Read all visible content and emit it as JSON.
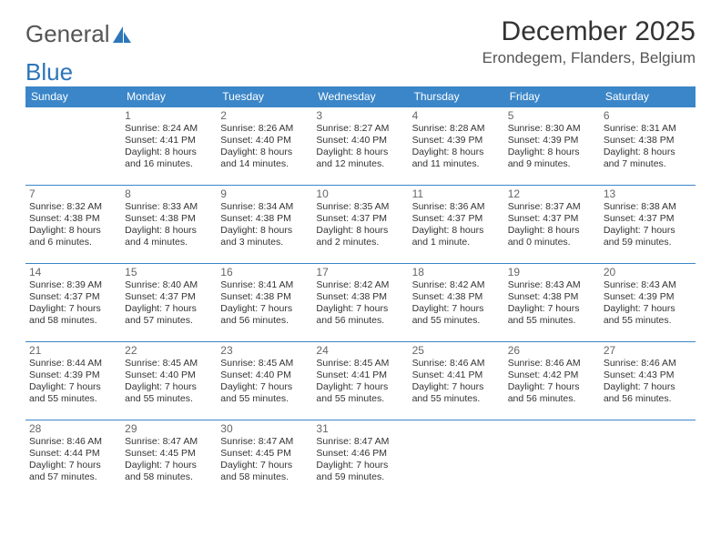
{
  "logo": {
    "part1": "General",
    "part2": "Blue"
  },
  "title": "December 2025",
  "location": "Erondegem, Flanders, Belgium",
  "colors": {
    "header_bg": "#3b86c8",
    "header_text": "#ffffff",
    "cell_border": "#3b86c8",
    "text": "#333333",
    "logo_gray": "#555555",
    "logo_blue": "#2d76ba",
    "background": "#ffffff"
  },
  "day_names": [
    "Sunday",
    "Monday",
    "Tuesday",
    "Wednesday",
    "Thursday",
    "Friday",
    "Saturday"
  ],
  "weeks": [
    [
      null,
      {
        "n": "1",
        "sr": "Sunrise: 8:24 AM",
        "ss": "Sunset: 4:41 PM",
        "dl": "Daylight: 8 hours and 16 minutes."
      },
      {
        "n": "2",
        "sr": "Sunrise: 8:26 AM",
        "ss": "Sunset: 4:40 PM",
        "dl": "Daylight: 8 hours and 14 minutes."
      },
      {
        "n": "3",
        "sr": "Sunrise: 8:27 AM",
        "ss": "Sunset: 4:40 PM",
        "dl": "Daylight: 8 hours and 12 minutes."
      },
      {
        "n": "4",
        "sr": "Sunrise: 8:28 AM",
        "ss": "Sunset: 4:39 PM",
        "dl": "Daylight: 8 hours and 11 minutes."
      },
      {
        "n": "5",
        "sr": "Sunrise: 8:30 AM",
        "ss": "Sunset: 4:39 PM",
        "dl": "Daylight: 8 hours and 9 minutes."
      },
      {
        "n": "6",
        "sr": "Sunrise: 8:31 AM",
        "ss": "Sunset: 4:38 PM",
        "dl": "Daylight: 8 hours and 7 minutes."
      }
    ],
    [
      {
        "n": "7",
        "sr": "Sunrise: 8:32 AM",
        "ss": "Sunset: 4:38 PM",
        "dl": "Daylight: 8 hours and 6 minutes."
      },
      {
        "n": "8",
        "sr": "Sunrise: 8:33 AM",
        "ss": "Sunset: 4:38 PM",
        "dl": "Daylight: 8 hours and 4 minutes."
      },
      {
        "n": "9",
        "sr": "Sunrise: 8:34 AM",
        "ss": "Sunset: 4:38 PM",
        "dl": "Daylight: 8 hours and 3 minutes."
      },
      {
        "n": "10",
        "sr": "Sunrise: 8:35 AM",
        "ss": "Sunset: 4:37 PM",
        "dl": "Daylight: 8 hours and 2 minutes."
      },
      {
        "n": "11",
        "sr": "Sunrise: 8:36 AM",
        "ss": "Sunset: 4:37 PM",
        "dl": "Daylight: 8 hours and 1 minute."
      },
      {
        "n": "12",
        "sr": "Sunrise: 8:37 AM",
        "ss": "Sunset: 4:37 PM",
        "dl": "Daylight: 8 hours and 0 minutes."
      },
      {
        "n": "13",
        "sr": "Sunrise: 8:38 AM",
        "ss": "Sunset: 4:37 PM",
        "dl": "Daylight: 7 hours and 59 minutes."
      }
    ],
    [
      {
        "n": "14",
        "sr": "Sunrise: 8:39 AM",
        "ss": "Sunset: 4:37 PM",
        "dl": "Daylight: 7 hours and 58 minutes."
      },
      {
        "n": "15",
        "sr": "Sunrise: 8:40 AM",
        "ss": "Sunset: 4:37 PM",
        "dl": "Daylight: 7 hours and 57 minutes."
      },
      {
        "n": "16",
        "sr": "Sunrise: 8:41 AM",
        "ss": "Sunset: 4:38 PM",
        "dl": "Daylight: 7 hours and 56 minutes."
      },
      {
        "n": "17",
        "sr": "Sunrise: 8:42 AM",
        "ss": "Sunset: 4:38 PM",
        "dl": "Daylight: 7 hours and 56 minutes."
      },
      {
        "n": "18",
        "sr": "Sunrise: 8:42 AM",
        "ss": "Sunset: 4:38 PM",
        "dl": "Daylight: 7 hours and 55 minutes."
      },
      {
        "n": "19",
        "sr": "Sunrise: 8:43 AM",
        "ss": "Sunset: 4:38 PM",
        "dl": "Daylight: 7 hours and 55 minutes."
      },
      {
        "n": "20",
        "sr": "Sunrise: 8:43 AM",
        "ss": "Sunset: 4:39 PM",
        "dl": "Daylight: 7 hours and 55 minutes."
      }
    ],
    [
      {
        "n": "21",
        "sr": "Sunrise: 8:44 AM",
        "ss": "Sunset: 4:39 PM",
        "dl": "Daylight: 7 hours and 55 minutes."
      },
      {
        "n": "22",
        "sr": "Sunrise: 8:45 AM",
        "ss": "Sunset: 4:40 PM",
        "dl": "Daylight: 7 hours and 55 minutes."
      },
      {
        "n": "23",
        "sr": "Sunrise: 8:45 AM",
        "ss": "Sunset: 4:40 PM",
        "dl": "Daylight: 7 hours and 55 minutes."
      },
      {
        "n": "24",
        "sr": "Sunrise: 8:45 AM",
        "ss": "Sunset: 4:41 PM",
        "dl": "Daylight: 7 hours and 55 minutes."
      },
      {
        "n": "25",
        "sr": "Sunrise: 8:46 AM",
        "ss": "Sunset: 4:41 PM",
        "dl": "Daylight: 7 hours and 55 minutes."
      },
      {
        "n": "26",
        "sr": "Sunrise: 8:46 AM",
        "ss": "Sunset: 4:42 PM",
        "dl": "Daylight: 7 hours and 56 minutes."
      },
      {
        "n": "27",
        "sr": "Sunrise: 8:46 AM",
        "ss": "Sunset: 4:43 PM",
        "dl": "Daylight: 7 hours and 56 minutes."
      }
    ],
    [
      {
        "n": "28",
        "sr": "Sunrise: 8:46 AM",
        "ss": "Sunset: 4:44 PM",
        "dl": "Daylight: 7 hours and 57 minutes."
      },
      {
        "n": "29",
        "sr": "Sunrise: 8:47 AM",
        "ss": "Sunset: 4:45 PM",
        "dl": "Daylight: 7 hours and 58 minutes."
      },
      {
        "n": "30",
        "sr": "Sunrise: 8:47 AM",
        "ss": "Sunset: 4:45 PM",
        "dl": "Daylight: 7 hours and 58 minutes."
      },
      {
        "n": "31",
        "sr": "Sunrise: 8:47 AM",
        "ss": "Sunset: 4:46 PM",
        "dl": "Daylight: 7 hours and 59 minutes."
      },
      null,
      null,
      null
    ]
  ]
}
